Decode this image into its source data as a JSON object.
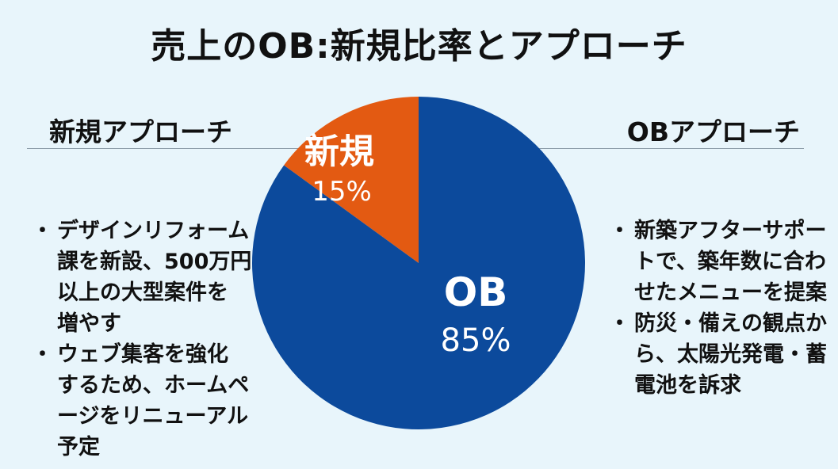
{
  "title": "売上のOB:新規比率とアプローチ",
  "left": {
    "heading": "新規アプローチ",
    "bullets": [
      "デザインリフォーム\n課を新設、500万円\n以上の大型案件を\n増やす",
      "ウェブ集客を強化\nするため、ホームペ\nージをリニューアル\n予定"
    ]
  },
  "right": {
    "heading": "OBアプローチ",
    "bullets": [
      "新築アフターサポー\nトで、築年数に合わ\nせたメニューを提案",
      "防災・備えの観点か\nら、太陽光発電・蓄\n電池を訴求"
    ]
  },
  "colors": {
    "new": "#e35a12",
    "ob": "#0c4a9c",
    "label": "#ffffff"
  },
  "chart_data": {
    "type": "pie",
    "categories": [
      "新規",
      "OB"
    ],
    "values": [
      15,
      85
    ],
    "value_labels": [
      "15%",
      "85%"
    ],
    "start": "top, clockwise from 新規 going counter-clockwise",
    "title": "売上のOB:新規比率とアプローチ"
  }
}
